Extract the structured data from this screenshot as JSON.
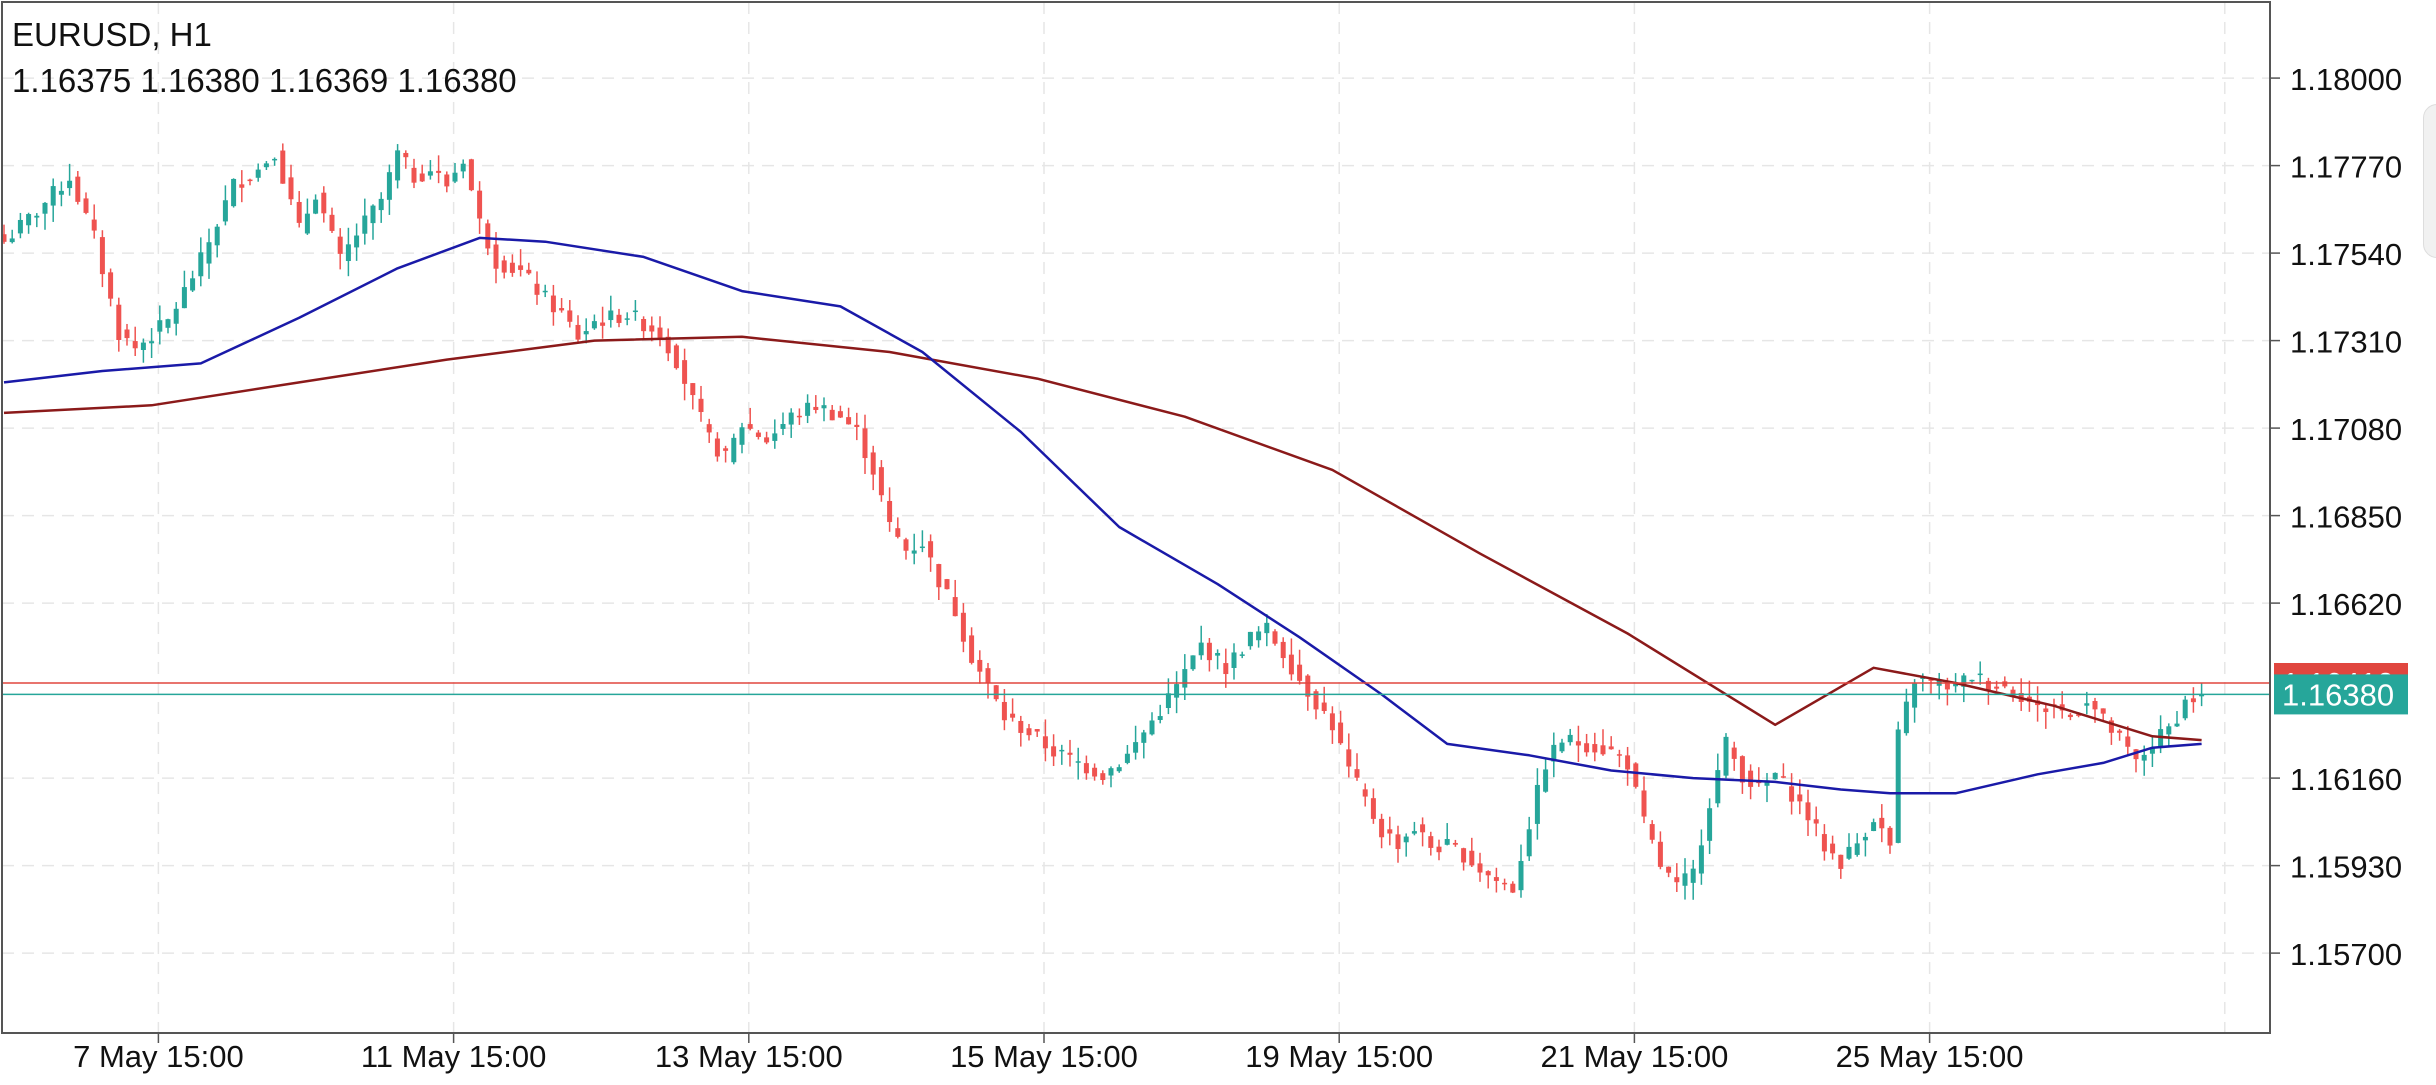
{
  "symbol_label": "EURUSD, H1",
  "ohlc_label": "1.16375 1.16380 1.16369 1.16380",
  "colors": {
    "up_candle": "#26a69a",
    "down_candle": "#ef5350",
    "ma_fast": "#1a1aa8",
    "ma_slow": "#8b1a1a",
    "bid_line": "#26a69a",
    "ask_line": "#e0463f",
    "grid": "#e6e6e6",
    "border": "#555555"
  },
  "chart_data": {
    "type": "candlestick",
    "symbol": "EURUSD",
    "timeframe": "H1",
    "ylim": [
      1.1549,
      1.182
    ],
    "y_ticks": [
      "1.18000",
      "1.17770",
      "1.17540",
      "1.17310",
      "1.17080",
      "1.16850",
      "1.16620",
      "1.16160",
      "1.15930",
      "1.15700"
    ],
    "x_ticks": [
      "7 May 15:00",
      "11 May 15:00",
      "13 May 15:00",
      "15 May 15:00",
      "19 May 15:00",
      "21 May 15:00",
      "25 May 15:00"
    ],
    "x_tick_index": [
      12,
      48,
      84,
      120,
      156,
      192,
      228
    ],
    "bid_price": 1.1638,
    "bid_label": "1.16380",
    "ask_price": 1.1641,
    "ask_label": "1.16410",
    "close_anchors": [
      [
        0,
        1.1757
      ],
      [
        4,
        1.1765
      ],
      [
        8,
        1.1774
      ],
      [
        11,
        1.1758
      ],
      [
        14,
        1.1733
      ],
      [
        16,
        1.1729
      ],
      [
        20,
        1.1736
      ],
      [
        24,
        1.1752
      ],
      [
        28,
        1.1772
      ],
      [
        31,
        1.1776
      ],
      [
        33,
        1.1781
      ],
      [
        36,
        1.176
      ],
      [
        38,
        1.177
      ],
      [
        41,
        1.1752
      ],
      [
        43,
        1.1759
      ],
      [
        46,
        1.1768
      ],
      [
        48,
        1.178
      ],
      [
        50,
        1.1774
      ],
      [
        52,
        1.1776
      ],
      [
        54,
        1.1772
      ],
      [
        56,
        1.1779
      ],
      [
        58,
        1.1762
      ],
      [
        60,
        1.1752
      ],
      [
        63,
        1.1749
      ],
      [
        66,
        1.1742
      ],
      [
        68,
        1.1738
      ],
      [
        70,
        1.1732
      ],
      [
        72,
        1.1736
      ],
      [
        76,
        1.1738
      ],
      [
        80,
        1.1733
      ],
      [
        82,
        1.1726
      ],
      [
        84,
        1.1715
      ],
      [
        86,
        1.1705
      ],
      [
        88,
        1.17
      ],
      [
        90,
        1.1709
      ],
      [
        93,
        1.1705
      ],
      [
        96,
        1.1711
      ],
      [
        99,
        1.1714
      ],
      [
        102,
        1.1711
      ],
      [
        104,
        1.1707
      ],
      [
        106,
        1.1697
      ],
      [
        108,
        1.1682
      ],
      [
        110,
        1.1676
      ],
      [
        112,
        1.1678
      ],
      [
        114,
        1.1668
      ],
      [
        116,
        1.166
      ],
      [
        118,
        1.1648
      ],
      [
        120,
        1.164
      ],
      [
        122,
        1.1632
      ],
      [
        125,
        1.1628
      ],
      [
        128,
        1.1623
      ],
      [
        131,
        1.162
      ],
      [
        134,
        1.1617
      ],
      [
        137,
        1.1622
      ],
      [
        140,
        1.1631
      ],
      [
        143,
        1.164
      ],
      [
        146,
        1.1651
      ],
      [
        149,
        1.1645
      ],
      [
        152,
        1.1653
      ],
      [
        154,
        1.1655
      ],
      [
        156,
        1.1649
      ],
      [
        158,
        1.1642
      ],
      [
        160,
        1.1636
      ],
      [
        162,
        1.163
      ],
      [
        164,
        1.1618
      ],
      [
        166,
        1.161
      ],
      [
        168,
        1.1602
      ],
      [
        170,
        1.1599
      ],
      [
        172,
        1.1603
      ],
      [
        174,
        1.1598
      ],
      [
        176,
        1.1598
      ],
      [
        178,
        1.1596
      ],
      [
        180,
        1.1592
      ],
      [
        182,
        1.1589
      ],
      [
        184,
        1.1587
      ],
      [
        186,
        1.1604
      ],
      [
        188,
        1.162
      ],
      [
        190,
        1.1626
      ],
      [
        193,
        1.1625
      ],
      [
        196,
        1.1623
      ],
      [
        198,
        1.162
      ],
      [
        200,
        1.1604
      ],
      [
        202,
        1.1593
      ],
      [
        204,
        1.1587
      ],
      [
        206,
        1.1591
      ],
      [
        208,
        1.161
      ],
      [
        210,
        1.1625
      ],
      [
        212,
        1.1617
      ],
      [
        214,
        1.1613
      ],
      [
        216,
        1.1617
      ],
      [
        218,
        1.1612
      ],
      [
        220,
        1.1606
      ],
      [
        222,
        1.1598
      ],
      [
        224,
        1.1594
      ],
      [
        226,
        1.1599
      ],
      [
        228,
        1.1606
      ],
      [
        230,
        1.1598
      ],
      [
        231,
        1.1627
      ],
      [
        233,
        1.1642
      ],
      [
        235,
        1.1641
      ],
      [
        238,
        1.164
      ],
      [
        240,
        1.1643
      ],
      [
        242,
        1.1641
      ],
      [
        244,
        1.164
      ],
      [
        246,
        1.1638
      ],
      [
        248,
        1.1634
      ],
      [
        250,
        1.1635
      ],
      [
        252,
        1.1632
      ],
      [
        254,
        1.1637
      ],
      [
        256,
        1.1631
      ],
      [
        258,
        1.1626
      ],
      [
        260,
        1.162
      ],
      [
        262,
        1.1625
      ],
      [
        264,
        1.1629
      ],
      [
        266,
        1.1636
      ],
      [
        268,
        1.1638
      ]
    ],
    "ma_fast": [
      [
        0,
        1.172
      ],
      [
        12,
        1.1723
      ],
      [
        24,
        1.1725
      ],
      [
        36,
        1.1737
      ],
      [
        48,
        1.175
      ],
      [
        58,
        1.1758
      ],
      [
        66,
        1.1757
      ],
      [
        78,
        1.1753
      ],
      [
        90,
        1.1744
      ],
      [
        102,
        1.174
      ],
      [
        112,
        1.1728
      ],
      [
        124,
        1.1707
      ],
      [
        136,
        1.1682
      ],
      [
        148,
        1.1667
      ],
      [
        158,
        1.1653
      ],
      [
        168,
        1.1638
      ],
      [
        176,
        1.1625
      ],
      [
        186,
        1.1622
      ],
      [
        196,
        1.1618
      ],
      [
        206,
        1.1616
      ],
      [
        216,
        1.1615
      ],
      [
        224,
        1.1613
      ],
      [
        230,
        1.1612
      ],
      [
        238,
        1.1612
      ],
      [
        248,
        1.1617
      ],
      [
        256,
        1.162
      ],
      [
        262,
        1.1624
      ],
      [
        268,
        1.1625
      ]
    ],
    "ma_slow": [
      [
        0,
        1.1712
      ],
      [
        18,
        1.1714
      ],
      [
        36,
        1.172
      ],
      [
        54,
        1.1726
      ],
      [
        72,
        1.1731
      ],
      [
        90,
        1.1732
      ],
      [
        108,
        1.1728
      ],
      [
        126,
        1.1721
      ],
      [
        144,
        1.1711
      ],
      [
        162,
        1.1697
      ],
      [
        180,
        1.1675
      ],
      [
        198,
        1.1654
      ],
      [
        216,
        1.163
      ],
      [
        228,
        1.1645
      ],
      [
        238,
        1.1641
      ],
      [
        250,
        1.1635
      ],
      [
        262,
        1.1627
      ],
      [
        268,
        1.1626
      ]
    ]
  }
}
